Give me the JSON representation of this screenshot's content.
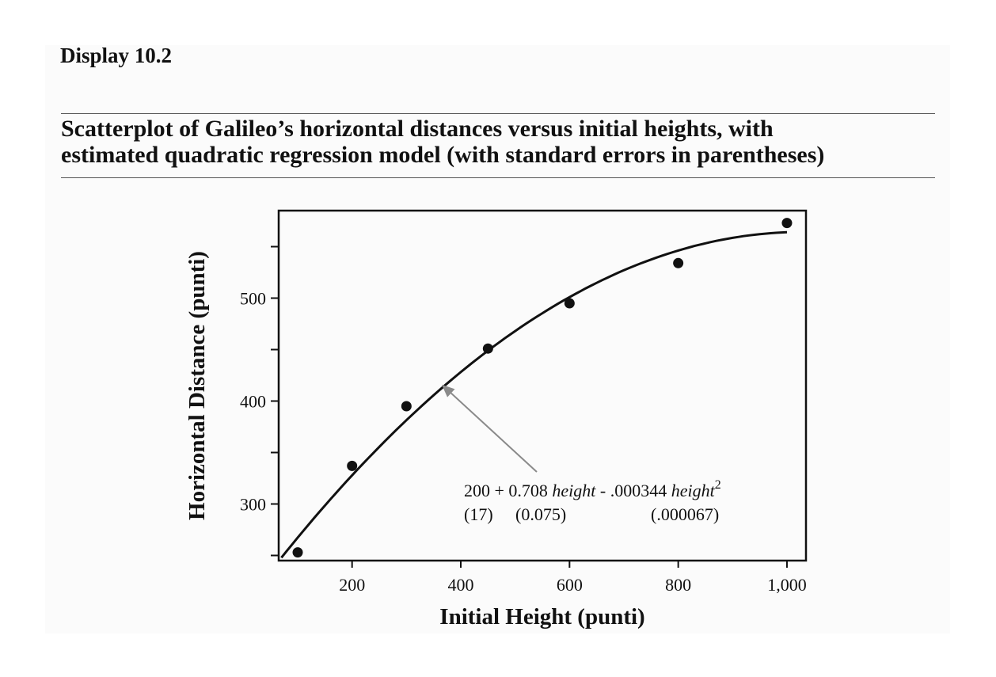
{
  "header": {
    "display_label": "Display 10.2",
    "caption_line1": "Scatterplot of Galileo’s horizontal distances versus initial heights, with",
    "caption_line2": "estimated quadratic regression model (with standard errors in parentheses)"
  },
  "chart_data": {
    "type": "scatter",
    "title": "",
    "xlabel": "Initial Height (punti)",
    "ylabel": "Horizontal Distance (punti)",
    "xlim": [
      65,
      1035
    ],
    "ylim": [
      245,
      585
    ],
    "x_ticks": [
      200,
      400,
      600,
      800,
      1000
    ],
    "x_tick_labels": [
      "200",
      "400",
      "600",
      "800",
      "1,000"
    ],
    "y_ticks": [
      300,
      400,
      500
    ],
    "y_tick_labels": [
      "300",
      "400",
      "500"
    ],
    "y_minor_ticks": [
      250,
      350,
      450,
      550
    ],
    "grid": false,
    "series": [
      {
        "points": [
          {
            "x": 100,
            "y": 253
          },
          {
            "x": 200,
            "y": 337
          },
          {
            "x": 300,
            "y": 395
          },
          {
            "x": 450,
            "y": 451
          },
          {
            "x": 600,
            "y": 495
          },
          {
            "x": 800,
            "y": 534
          },
          {
            "x": 1000,
            "y": 573
          }
        ]
      }
    ],
    "fit": {
      "type": "quadratic",
      "intercept": 200,
      "linear": 0.708,
      "quadratic": -0.000344,
      "x_range": [
        70,
        1000
      ]
    },
    "annotation": {
      "coef_intercept": "200",
      "coef_linear": "0.708",
      "coef_quadratic": ".000344",
      "term": "height",
      "exponent": "2",
      "se_intercept": "(17)",
      "se_linear": "(0.075)",
      "se_quadratic": "(.000067)",
      "arrow_target": {
        "x": 365,
        "y": 416
      },
      "arrow_color": "#8a8a8a"
    }
  }
}
